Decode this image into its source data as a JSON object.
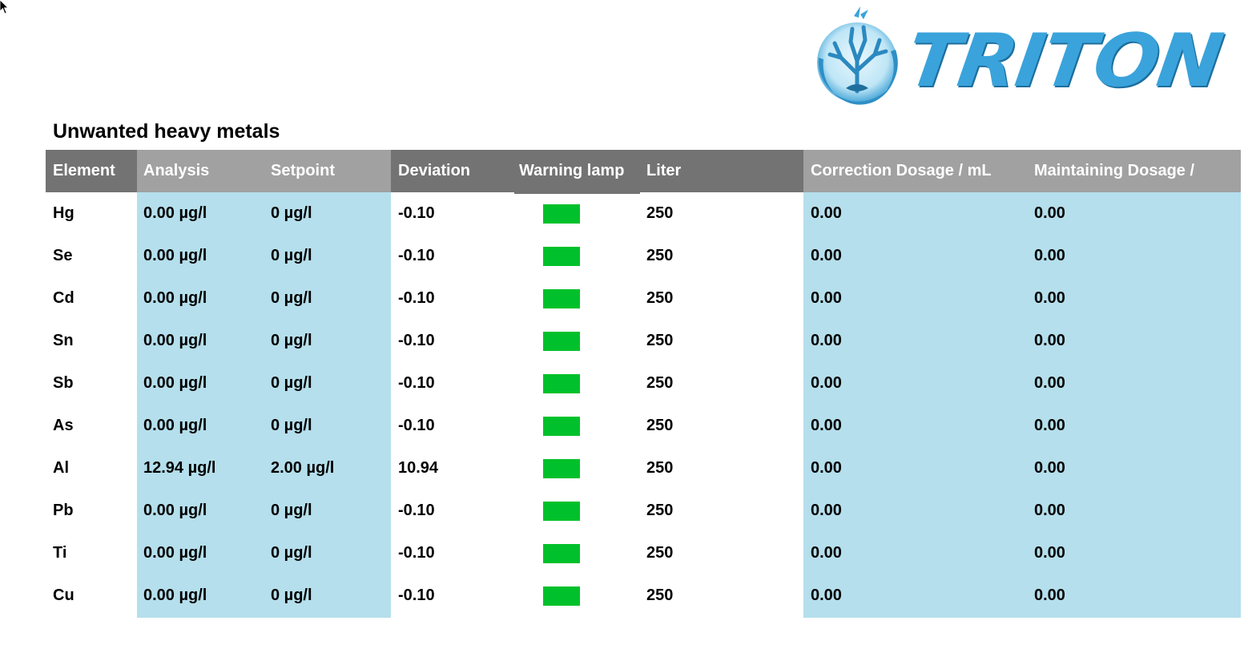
{
  "brand": {
    "name": "TRITON"
  },
  "section": {
    "title": "Unwanted heavy metals"
  },
  "columns": {
    "element": "Element",
    "analysis": "Analysis",
    "setpoint": "Setpoint",
    "deviation": "Deviation",
    "warning": "Warning lamp",
    "liter": "Liter",
    "correction": "Correction Dosage / mL",
    "maintaining": "Maintaining Dosage /"
  },
  "colors": {
    "lamp_ok": "#00c12b",
    "value_bg": "#b5dfec",
    "header_dark": "#737373",
    "header_light": "#a1a1a1"
  },
  "rows": [
    {
      "element": "Hg",
      "analysis": "0.00 µg/l",
      "setpoint": "0 µg/l",
      "deviation": "-0.10",
      "lamp": "green",
      "liter": "250",
      "correction": "0.00",
      "maintaining": "0.00"
    },
    {
      "element": "Se",
      "analysis": "0.00 µg/l",
      "setpoint": "0 µg/l",
      "deviation": "-0.10",
      "lamp": "green",
      "liter": "250",
      "correction": "0.00",
      "maintaining": "0.00"
    },
    {
      "element": "Cd",
      "analysis": "0.00 µg/l",
      "setpoint": "0 µg/l",
      "deviation": "-0.10",
      "lamp": "green",
      "liter": "250",
      "correction": "0.00",
      "maintaining": "0.00"
    },
    {
      "element": "Sn",
      "analysis": "0.00 µg/l",
      "setpoint": "0 µg/l",
      "deviation": "-0.10",
      "lamp": "green",
      "liter": "250",
      "correction": "0.00",
      "maintaining": "0.00"
    },
    {
      "element": "Sb",
      "analysis": "0.00 µg/l",
      "setpoint": "0 µg/l",
      "deviation": "-0.10",
      "lamp": "green",
      "liter": "250",
      "correction": "0.00",
      "maintaining": "0.00"
    },
    {
      "element": "As",
      "analysis": "0.00 µg/l",
      "setpoint": "0 µg/l",
      "deviation": "-0.10",
      "lamp": "green",
      "liter": "250",
      "correction": "0.00",
      "maintaining": "0.00"
    },
    {
      "element": "Al",
      "analysis": "12.94 µg/l",
      "setpoint": "2.00 µg/l",
      "deviation": "10.94",
      "lamp": "green",
      "liter": "250",
      "correction": "0.00",
      "maintaining": "0.00"
    },
    {
      "element": "Pb",
      "analysis": "0.00 µg/l",
      "setpoint": "0 µg/l",
      "deviation": "-0.10",
      "lamp": "green",
      "liter": "250",
      "correction": "0.00",
      "maintaining": "0.00"
    },
    {
      "element": "Ti",
      "analysis": "0.00 µg/l",
      "setpoint": "0 µg/l",
      "deviation": "-0.10",
      "lamp": "green",
      "liter": "250",
      "correction": "0.00",
      "maintaining": "0.00"
    },
    {
      "element": "Cu",
      "analysis": "0.00 µg/l",
      "setpoint": "0 µg/l",
      "deviation": "-0.10",
      "lamp": "green",
      "liter": "250",
      "correction": "0.00",
      "maintaining": "0.00"
    }
  ]
}
